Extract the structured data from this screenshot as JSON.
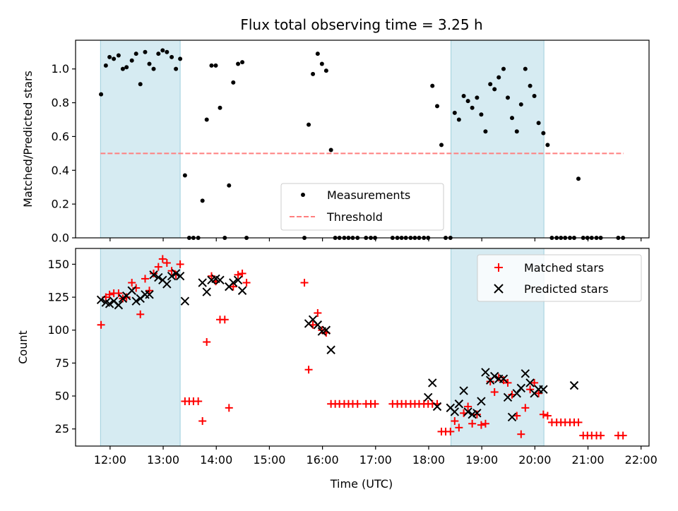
{
  "title": "Flux total observing time = 3.25 h",
  "chart_data": [
    {
      "type": "scatter",
      "ylabel": "Matched/Predicted stars",
      "xlabel": "",
      "xlim_hours": [
        11.35,
        22.15
      ],
      "ylim": [
        0,
        1.17
      ],
      "yticks": [
        0.0,
        0.2,
        0.4,
        0.6,
        0.8,
        1.0
      ],
      "ytick_labels": [
        "0.0",
        "0.2",
        "0.4",
        "0.6",
        "0.8",
        "1.0"
      ],
      "shaded_intervals_hours": [
        [
          11.82,
          13.32
        ],
        [
          18.42,
          20.17
        ]
      ],
      "threshold": {
        "name": "Threshold",
        "value": 0.5,
        "x_range_hours": [
          11.82,
          21.67
        ],
        "color": "#ff7f7f"
      },
      "series": [
        {
          "name": "Measurements",
          "color": "#000000",
          "marker": "dot",
          "x_hours": [
            11.83,
            11.92,
            11.99,
            12.07,
            12.16,
            12.24,
            12.31,
            12.41,
            12.49,
            12.57,
            12.66,
            12.74,
            12.82,
            12.91,
            12.99,
            13.07,
            13.16,
            13.24,
            13.32,
            13.41,
            13.49,
            13.57,
            13.66,
            13.74,
            13.82,
            13.91,
            13.99,
            14.07,
            14.16,
            14.24,
            14.32,
            14.41,
            14.49,
            14.57,
            15.66,
            15.74,
            15.82,
            15.91,
            15.99,
            16.07,
            16.16,
            16.24,
            16.32,
            16.41,
            16.49,
            16.57,
            16.66,
            16.82,
            16.91,
            16.99,
            17.32,
            17.41,
            17.49,
            17.57,
            17.66,
            17.74,
            17.82,
            17.91,
            17.99,
            18.07,
            18.16,
            18.24,
            18.32,
            18.41,
            18.49,
            18.57,
            18.66,
            18.74,
            18.82,
            18.91,
            18.99,
            19.07,
            19.16,
            19.24,
            19.32,
            19.41,
            19.49,
            19.57,
            19.66,
            19.74,
            19.82,
            19.91,
            19.99,
            20.07,
            20.16,
            20.24,
            20.32,
            20.41,
            20.49,
            20.57,
            20.66,
            20.74,
            20.82,
            20.91,
            20.99,
            21.07,
            21.16,
            21.24,
            21.57,
            21.66
          ],
          "y": [
            0.85,
            1.02,
            1.07,
            1.06,
            1.08,
            1.0,
            1.01,
            1.05,
            1.09,
            0.91,
            1.1,
            1.03,
            1.0,
            1.09,
            1.11,
            1.1,
            1.07,
            1.0,
            1.06,
            0.37,
            0.0,
            0.0,
            0.0,
            0.22,
            0.7,
            1.02,
            1.02,
            0.77,
            0.0,
            0.31,
            0.92,
            1.03,
            1.04,
            0.0,
            0.0,
            0.67,
            0.97,
            1.09,
            1.03,
            0.99,
            0.52,
            0.0,
            0.0,
            0.0,
            0.0,
            0.0,
            0.0,
            0.0,
            0.0,
            0.0,
            0.0,
            0.0,
            0.0,
            0.0,
            0.0,
            0.0,
            0.0,
            0.0,
            0.0,
            0.9,
            0.78,
            0.55,
            0.0,
            0.0,
            0.74,
            0.7,
            0.84,
            0.81,
            0.77,
            0.83,
            0.73,
            0.63,
            0.91,
            0.88,
            0.95,
            1.0,
            0.83,
            0.71,
            0.63,
            0.79,
            1.0,
            0.9,
            0.84,
            0.68,
            0.62,
            0.55,
            0.0,
            0.0,
            0.0,
            0.0,
            0.0,
            0.0,
            0.35,
            0.0,
            0.0,
            0.0,
            0.0,
            0.0,
            0.0,
            0.0
          ]
        }
      ],
      "legend": {
        "position": "lower center",
        "entries": [
          "Measurements",
          "Threshold"
        ]
      }
    },
    {
      "type": "scatter",
      "ylabel": "Count",
      "xlabel": "Time (UTC)",
      "xlim_hours": [
        11.35,
        22.15
      ],
      "ylim": [
        12,
        162
      ],
      "yticks": [
        25,
        50,
        75,
        100,
        125,
        150
      ],
      "ytick_labels": [
        "25",
        "50",
        "75",
        "100",
        "125",
        "150"
      ],
      "xticks_hours": [
        12,
        13,
        14,
        15,
        16,
        17,
        18,
        19,
        20,
        21,
        22
      ],
      "xtick_labels": [
        "12:00",
        "13:00",
        "14:00",
        "15:00",
        "16:00",
        "17:00",
        "18:00",
        "19:00",
        "20:00",
        "21:00",
        "22:00"
      ],
      "shaded_intervals_hours": [
        [
          11.82,
          13.32
        ],
        [
          18.42,
          20.17
        ]
      ],
      "series": [
        {
          "name": "Matched stars",
          "color": "#ff0000",
          "marker": "plus",
          "x_hours": [
            11.83,
            11.92,
            11.99,
            12.07,
            12.16,
            12.24,
            12.31,
            12.41,
            12.49,
            12.57,
            12.66,
            12.74,
            12.82,
            12.91,
            12.99,
            13.07,
            13.16,
            13.24,
            13.32,
            13.41,
            13.49,
            13.57,
            13.66,
            13.74,
            13.82,
            13.91,
            13.99,
            14.07,
            14.16,
            14.24,
            14.32,
            14.41,
            14.49,
            14.57,
            15.66,
            15.74,
            15.82,
            15.91,
            15.99,
            16.07,
            16.16,
            16.24,
            16.32,
            16.41,
            16.49,
            16.57,
            16.66,
            16.82,
            16.91,
            16.99,
            17.32,
            17.41,
            17.49,
            17.57,
            17.66,
            17.74,
            17.82,
            17.91,
            17.99,
            18.07,
            18.16,
            18.24,
            18.32,
            18.41,
            18.49,
            18.57,
            18.66,
            18.74,
            18.82,
            18.91,
            18.99,
            19.07,
            19.16,
            19.24,
            19.32,
            19.41,
            19.49,
            19.57,
            19.66,
            19.74,
            19.82,
            19.91,
            19.99,
            20.07,
            20.16,
            20.24,
            20.32,
            20.41,
            20.49,
            20.57,
            20.66,
            20.74,
            20.82,
            20.91,
            20.99,
            21.07,
            21.16,
            21.24,
            21.57,
            21.66
          ],
          "y": [
            104,
            125,
            127,
            128,
            128,
            124,
            125,
            136,
            132,
            112,
            139,
            130,
            143,
            148,
            154,
            151,
            145,
            142,
            150,
            46,
            46,
            46,
            46,
            31,
            91,
            141,
            137,
            108,
            108,
            41,
            133,
            142,
            143,
            136,
            136,
            70,
            104,
            113,
            100,
            98,
            44,
            44,
            44,
            44,
            44,
            44,
            44,
            44,
            44,
            44,
            44,
            44,
            44,
            44,
            44,
            44,
            44,
            44,
            44,
            44,
            44,
            23,
            23,
            23,
            31,
            26,
            37,
            42,
            29,
            36,
            28,
            29,
            61,
            53,
            64,
            62,
            60,
            51,
            35,
            21,
            41,
            55,
            60,
            52,
            36,
            35,
            30,
            30,
            30,
            30,
            30,
            30,
            30,
            20,
            20,
            20,
            20,
            20,
            20,
            20
          ]
        },
        {
          "name": "Predicted stars",
          "color": "#000000",
          "marker": "x",
          "x_hours": [
            11.83,
            11.92,
            11.99,
            12.07,
            12.16,
            12.24,
            12.31,
            12.41,
            12.49,
            12.57,
            12.66,
            12.74,
            12.82,
            12.91,
            12.99,
            13.07,
            13.16,
            13.24,
            13.32,
            13.41,
            13.74,
            13.82,
            13.91,
            13.99,
            14.07,
            14.24,
            14.32,
            14.41,
            14.49,
            15.74,
            15.82,
            15.91,
            15.99,
            16.07,
            16.16,
            17.99,
            18.07,
            18.16,
            18.41,
            18.49,
            18.57,
            18.66,
            18.74,
            18.82,
            18.91,
            18.99,
            19.07,
            19.16,
            19.24,
            19.32,
            19.41,
            19.49,
            19.57,
            19.66,
            19.74,
            19.82,
            19.91,
            19.99,
            20.07,
            20.16,
            20.74
          ],
          "y": [
            123,
            121,
            120,
            122,
            119,
            124,
            126,
            130,
            122,
            124,
            127,
            127,
            142,
            140,
            138,
            135,
            141,
            143,
            141,
            122,
            136,
            129,
            138,
            139,
            138,
            133,
            136,
            138,
            130,
            105,
            108,
            104,
            99,
            100,
            85,
            49,
            60,
            42,
            41,
            38,
            44,
            54,
            38,
            36,
            37,
            46,
            68,
            62,
            65,
            63,
            63,
            49,
            34,
            52,
            56,
            67,
            60,
            52,
            55,
            55,
            58
          ]
        }
      ],
      "legend": {
        "position": "upper right",
        "entries": [
          "Matched stars",
          "Predicted stars"
        ]
      }
    }
  ]
}
